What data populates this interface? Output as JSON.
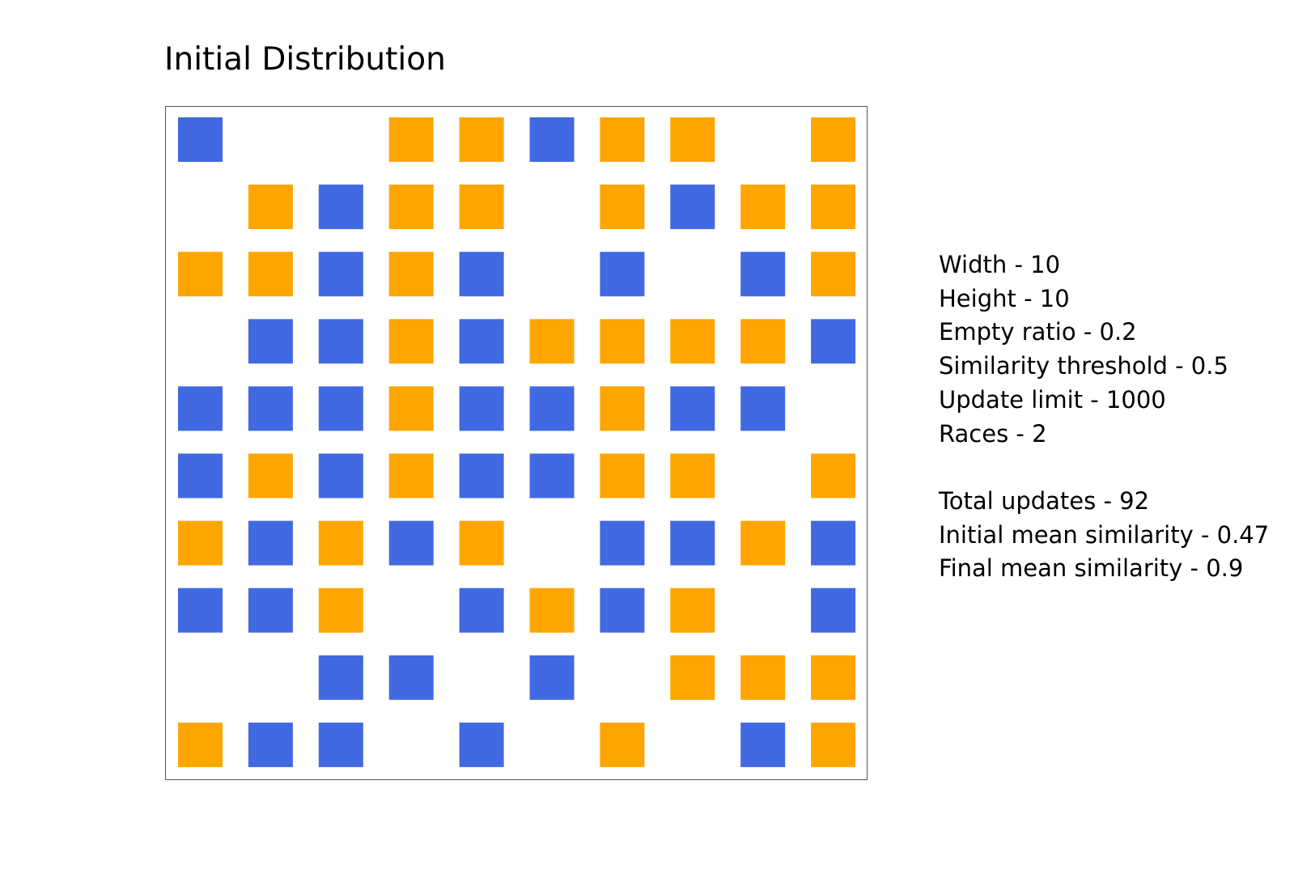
{
  "chart_data": {
    "type": "heatmap",
    "title": "Initial Distribution",
    "width": 10,
    "height": 10,
    "legend": "none",
    "colors": {
      "race_1": "#4169E1",
      "race_2": "#FFA500",
      "empty": "#FFFFFF"
    },
    "cell_key": {
      "0": "empty",
      "1": "race_1",
      "2": "race_2"
    },
    "cells": [
      [
        1,
        0,
        0,
        2,
        2,
        1,
        2,
        2,
        0,
        2
      ],
      [
        0,
        2,
        1,
        2,
        2,
        0,
        2,
        1,
        2,
        2
      ],
      [
        2,
        2,
        1,
        2,
        1,
        0,
        1,
        0,
        1,
        2
      ],
      [
        0,
        1,
        1,
        2,
        1,
        2,
        2,
        2,
        2,
        1
      ],
      [
        1,
        1,
        1,
        2,
        1,
        1,
        2,
        1,
        1,
        0
      ],
      [
        1,
        2,
        1,
        2,
        1,
        1,
        2,
        2,
        0,
        2
      ],
      [
        2,
        1,
        2,
        1,
        2,
        0,
        1,
        1,
        2,
        1
      ],
      [
        1,
        1,
        2,
        0,
        1,
        2,
        1,
        2,
        0,
        1
      ],
      [
        0,
        0,
        1,
        1,
        0,
        1,
        0,
        2,
        2,
        2
      ],
      [
        2,
        1,
        1,
        0,
        1,
        0,
        2,
        0,
        1,
        2
      ]
    ]
  },
  "stats": {
    "params": [
      "Width - 10",
      "Height - 10",
      "Empty ratio - 0.2",
      "Similarity threshold - 0.5",
      "Update limit - 1000",
      "Races - 2"
    ],
    "results": [
      "Total updates - 92",
      "Initial mean similarity - 0.47",
      "Final mean similarity - 0.9"
    ]
  }
}
